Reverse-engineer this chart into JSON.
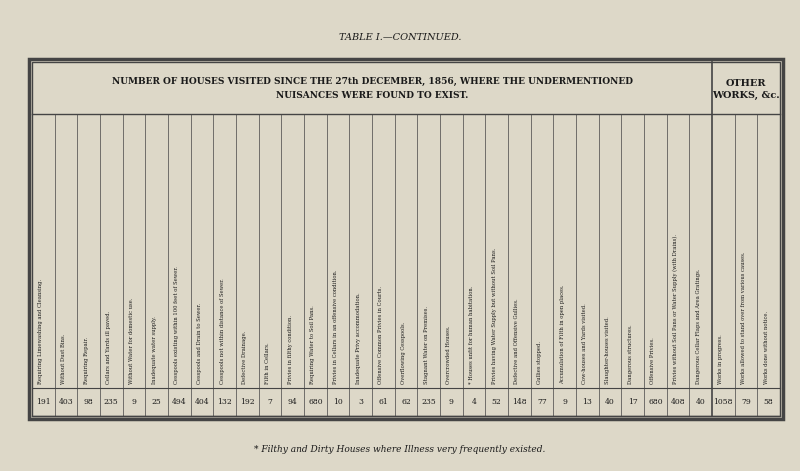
{
  "title": "TABLE I.—CONTINUED.",
  "header_main": "NUMBER OF HOUSES VISITED SINCE THE 27th DECEMBER, 1856, WHERE THE UNDERMENTIONED",
  "header_sub": "NUISANCES WERE FOUND TO EXIST.",
  "other_works_header": "OTHER\nWORKS, &c.",
  "footnote": "* Filthy and Dirty Houses where Illness very frequently existed.",
  "columns": [
    "Requiring Limewashing and Cleansing.",
    "Without Dust Bins.",
    "Requiring Repair.",
    "Cellars and Yards ill paved.",
    "Without Water for domestic use.",
    "Inadequate water supply.",
    "Cesspools existing within 100 feet of Sewer.",
    "Cesspools and Drain to Sewer.",
    "Cesspools not within distance of Sewer.",
    "Defective Drainage.",
    "Filth in Cellars.",
    "Privies in filthy condition.",
    "Requiring Water to Soil Pans.",
    "Privies in Cellars in an offensive condition.",
    "Inadequate Privy accommodation.",
    "Offensive Common Privies in Courts.",
    "Overflowing Cesspools.",
    "Stagnant Water on Premises.",
    "Overcrowded Houses.",
    "* Houses unfit for human habitation.",
    "Privies having Water Supply but without Soil Pans.",
    "Defective and Offensive Gullies.",
    "Gullies stopped.",
    "Accumulation of Filth in open places.",
    "Cow-houses and Yards visited.",
    "Slaughter-houses visited.",
    "Dangerous structures.",
    "Offensive Privies.",
    "Privies without Soil Pans or Water Supply (with Drains).",
    "Dangerous Cellar Flaps and Area Gratings.",
    "Works in progress.",
    "Works allowed to stand over from various causes.",
    "Works done without notice."
  ],
  "values": [
    191,
    403,
    98,
    235,
    9,
    25,
    494,
    404,
    132,
    192,
    7,
    94,
    680,
    10,
    3,
    61,
    62,
    235,
    9,
    4,
    52,
    148,
    77,
    9,
    13,
    40,
    17,
    680,
    408,
    40,
    1058,
    79,
    58
  ],
  "other_works_split_col": 30,
  "bg_color": "#ddd8c8",
  "text_color": "#1a1a1a",
  "line_color": "#444444",
  "fig_width": 8.0,
  "fig_height": 4.71,
  "dpi": 100
}
